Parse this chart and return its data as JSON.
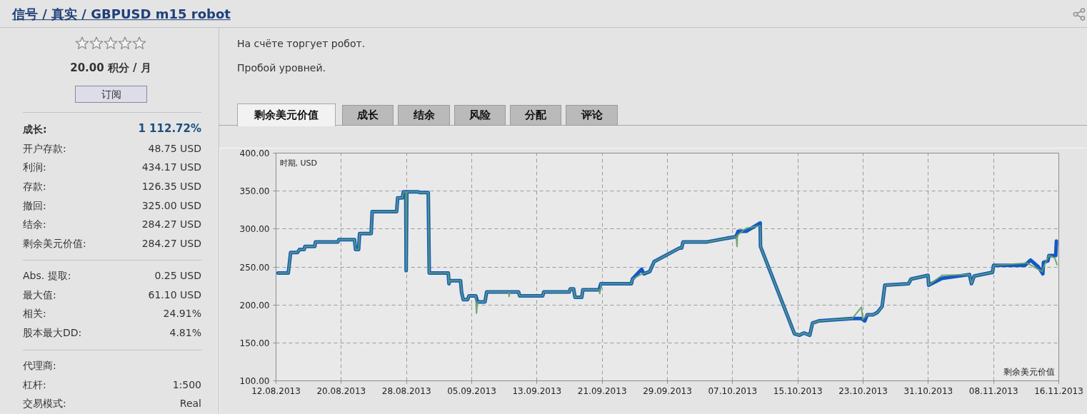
{
  "chart_data": {
    "type": "line",
    "title": "信号 / 真实 / GBPUSD m15 robot",
    "subtitle": "На счёте торгует робот.",
    "ylabel": "时期, USD",
    "xlim": [
      "2013-08-12",
      "2013-11-16"
    ],
    "xticks": [
      {
        "value": "2013-08-12",
        "label": "12.08.2013"
      },
      {
        "value": "2013-08-20",
        "label": "20.08.2013"
      },
      {
        "value": "2013-08-28",
        "label": "28.08.2013"
      },
      {
        "value": "2013-09-05",
        "label": "05.09.2013"
      },
      {
        "value": "2013-09-13",
        "label": "13.09.2013"
      },
      {
        "value": "2013-09-21",
        "label": "21.09.2013"
      },
      {
        "value": "2013-09-29",
        "label": "29.09.2013"
      },
      {
        "value": "2013-10-07",
        "label": "07.10.2013"
      },
      {
        "value": "2013-10-15",
        "label": "15.10.2013"
      },
      {
        "value": "2013-10-23",
        "label": "23.10.2013"
      },
      {
        "value": "2013-10-31",
        "label": "31.10.2013"
      },
      {
        "value": "2013-11-08",
        "label": "08.11.2013"
      },
      {
        "value": "2013-11-16",
        "label": "16.11.2013"
      }
    ],
    "ylim": [
      100,
      400
    ],
    "yticks": [
      {
        "value": 100,
        "label": "100.00"
      },
      {
        "value": 150,
        "label": "150.00"
      },
      {
        "value": 200,
        "label": "200.00"
      },
      {
        "value": 250,
        "label": "250.00"
      },
      {
        "value": 300,
        "label": "300.00"
      },
      {
        "value": 350,
        "label": "350.00"
      },
      {
        "value": 400,
        "label": "400.00"
      }
    ],
    "grid": true,
    "series": [
      {
        "color": "#1259c3",
        "x": [
          "2013-08-12T06:00",
          "2013-08-13T12:00",
          "2013-08-13T19:00",
          "2013-08-14T15:00",
          "2013-08-14T21:00",
          "2013-08-15T11:00",
          "2013-08-15T13:00",
          "2013-08-16T18:00",
          "2013-08-16T20:00",
          "2013-08-19T14:00",
          "2013-08-19T17:00",
          "2013-08-21T15:00",
          "2013-08-21T18:00",
          "2013-08-22T03:00",
          "2013-08-22T06:00",
          "2013-08-23T16:00",
          "2013-08-23T19:00",
          "2013-08-26T19:00",
          "2013-08-26T22:00",
          "2013-08-27T12:00",
          "2013-08-27T15:00",
          "2013-08-27T22:00",
          "2013-08-27T23:00",
          "2013-08-28T01:00",
          "2013-08-29T11:00",
          "2013-08-29T14:00",
          "2013-08-30T16:00",
          "2013-08-30T19:00",
          "2013-09-02T03:00",
          "2013-09-02T05:00",
          "2013-09-02T07:00",
          "2013-09-03T15:00",
          "2013-09-03T18:00",
          "2013-09-03T23:00",
          "2013-09-04T12:00",
          "2013-09-04T16:00",
          "2013-09-05T12:00",
          "2013-09-05T17:00",
          "2013-09-06T15:00",
          "2013-09-06T20:00",
          "2013-09-10T18:00",
          "2013-09-10T21:00",
          "2013-09-13T17:00",
          "2013-09-13T20:00",
          "2013-09-16T23:00",
          "2013-09-17T02:00",
          "2013-09-17T12:00",
          "2013-09-17T16:00",
          "2013-09-18T12:00",
          "2013-09-18T15:00",
          "2013-09-20T15:00",
          "2013-09-20T20:00",
          "2013-09-24T14:00",
          "2013-09-24T17:00",
          "2013-09-25T20:00",
          "2013-09-26T03:00",
          "2013-09-26T20:00",
          "2013-09-27T09:00",
          "2013-09-30T12:00",
          "2013-09-30T18:00",
          "2013-09-30T22:00",
          "2013-10-03T21:00",
          "2013-10-07T10:00",
          "2013-10-07T16:00",
          "2013-10-08T16:00",
          "2013-10-10T09:00",
          "2013-10-10T10:00",
          "2013-10-14T14:00",
          "2013-10-15T04:00",
          "2013-10-15T18:00",
          "2013-10-16T11:00",
          "2013-10-16T19:00",
          "2013-10-17T14:00",
          "2013-10-21T16:00",
          "2013-10-22T19:00",
          "2013-10-23T05:00",
          "2013-10-23T12:00",
          "2013-10-24T05:00",
          "2013-10-24T18:00",
          "2013-10-25T08:00",
          "2013-10-25T16:00",
          "2013-10-28T14:00",
          "2013-10-28T21:00",
          "2013-10-30T23:00",
          "2013-10-31T01:00",
          "2013-11-01T16:00",
          "2013-11-05T01:00",
          "2013-11-05T07:00",
          "2013-11-05T15:00",
          "2013-11-07T21:00",
          "2013-11-08T00:00",
          "2013-11-11T20:00",
          "2013-11-12T13:00",
          "2013-11-13T12:00",
          "2013-11-14T01:00",
          "2013-11-14T03:00",
          "2013-11-14T16:00",
          "2013-11-14T19:00",
          "2013-11-15T15:00",
          "2013-11-15T17:00"
        ],
        "values": [
          242,
          242,
          269,
          269,
          273,
          273,
          277,
          277,
          283,
          283,
          286,
          286,
          273,
          273,
          294,
          294,
          323,
          323,
          341,
          341,
          349,
          349,
          245,
          349,
          349,
          348,
          348,
          242,
          242,
          228,
          232,
          232,
          217,
          207,
          207,
          212,
          212,
          204,
          204,
          217,
          217,
          212,
          212,
          217,
          217,
          221,
          221,
          210,
          210,
          220,
          220,
          228,
          228,
          234,
          247,
          241,
          244,
          257,
          275,
          275,
          283,
          283,
          290,
          297,
          297,
          308,
          277,
          162,
          160,
          163,
          160,
          176,
          179,
          182,
          182,
          179,
          187,
          187,
          190,
          198,
          226,
          228,
          234,
          239,
          226,
          235,
          240,
          228,
          238,
          243,
          252,
          252,
          259,
          250,
          241,
          256,
          258,
          265,
          265,
          284
        ]
      },
      {
        "color": "#62a06c",
        "x": [
          "2013-08-12T06:00",
          "2013-08-13T12:00",
          "2013-08-13T19:00",
          "2013-08-14T15:00",
          "2013-08-14T21:00",
          "2013-08-15T11:00",
          "2013-08-15T13:00",
          "2013-08-16T18:00",
          "2013-08-16T20:00",
          "2013-08-19T14:00",
          "2013-08-19T17:00",
          "2013-08-21T15:00",
          "2013-08-21T18:00",
          "2013-08-22T03:00",
          "2013-08-22T06:00",
          "2013-08-23T16:00",
          "2013-08-23T19:00",
          "2013-08-26T19:00",
          "2013-08-26T22:00",
          "2013-08-27T12:00",
          "2013-08-27T15:00",
          "2013-08-27T22:00",
          "2013-08-27T23:00",
          "2013-08-28T01:00",
          "2013-08-29T11:00",
          "2013-08-29T14:00",
          "2013-08-30T16:00",
          "2013-08-30T19:00",
          "2013-09-02T03:00",
          "2013-09-02T05:00",
          "2013-09-02T07:00",
          "2013-09-03T15:00",
          "2013-09-03T18:00",
          "2013-09-03T23:00",
          "2013-09-04T12:00",
          "2013-09-04T16:00",
          "2013-09-05T12:00",
          "2013-09-05T14:00",
          "2013-09-05T17:00",
          "2013-09-06T15:00",
          "2013-09-06T20:00",
          "2013-09-09T13:00",
          "2013-09-09T14:00",
          "2013-09-09T16:00",
          "2013-09-10T18:00",
          "2013-09-10T21:00",
          "2013-09-13T17:00",
          "2013-09-13T20:00",
          "2013-09-16T23:00",
          "2013-09-17T02:00",
          "2013-09-17T12:00",
          "2013-09-17T16:00",
          "2013-09-18T12:00",
          "2013-09-18T15:00",
          "2013-09-20T15:00",
          "2013-09-20T17:00",
          "2013-09-20T20:00",
          "2013-09-24T14:00",
          "2013-09-24T17:00",
          "2013-09-25T17:00",
          "2013-09-26T20:00",
          "2013-09-27T09:00",
          "2013-09-30T12:00",
          "2013-09-30T18:00",
          "2013-09-30T22:00",
          "2013-10-03T21:00",
          "2013-10-07T10:00",
          "2013-10-07T13:00",
          "2013-10-07T14:00",
          "2013-10-08T16:00",
          "2013-10-10T05:00",
          "2013-10-10T09:00",
          "2013-10-10T10:00",
          "2013-10-14T14:00",
          "2013-10-15T04:00",
          "2013-10-15T18:00",
          "2013-10-16T11:00",
          "2013-10-16T19:00",
          "2013-10-17T14:00",
          "2013-10-21T16:00",
          "2013-10-22T19:00",
          "2013-10-22T23:00",
          "2013-10-23T12:00",
          "2013-10-24T05:00",
          "2013-10-24T18:00",
          "2013-10-25T08:00",
          "2013-10-25T16:00",
          "2013-10-28T14:00",
          "2013-10-28T21:00",
          "2013-10-30T23:00",
          "2013-10-31T01:00",
          "2013-11-01T16:00",
          "2013-11-05T01:00",
          "2013-11-05T07:00",
          "2013-11-05T15:00",
          "2013-11-07T21:00",
          "2013-11-08T00:00",
          "2013-11-11T20:00",
          "2013-11-11T23:00",
          "2013-11-13T23:00",
          "2013-11-14T06:00",
          "2013-11-14T19:00",
          "2013-11-15T12:00",
          "2013-11-15T19:00"
        ],
        "values": [
          242,
          242,
          269,
          269,
          273,
          273,
          277,
          277,
          283,
          283,
          286,
          286,
          273,
          273,
          294,
          294,
          323,
          323,
          341,
          341,
          349,
          349,
          245,
          349,
          349,
          348,
          348,
          242,
          242,
          228,
          232,
          232,
          217,
          207,
          207,
          212,
          212,
          189,
          204,
          204,
          217,
          217,
          211,
          217,
          217,
          212,
          212,
          217,
          217,
          221,
          221,
          210,
          210,
          220,
          220,
          215,
          228,
          228,
          234,
          240,
          244,
          257,
          275,
          275,
          283,
          283,
          290,
          277,
          292,
          301,
          304,
          304,
          277,
          162,
          160,
          163,
          160,
          176,
          179,
          182,
          197,
          181,
          187,
          187,
          190,
          198,
          226,
          228,
          234,
          239,
          226,
          239,
          240,
          228,
          238,
          243,
          252,
          255,
          256,
          244,
          253,
          265,
          262,
          253
        ]
      }
    ],
    "annotations": [
      "Пробой уровней.",
      "20.00 积分 / 月",
      "订阅",
      "剩余美元价值",
      "成长",
      "结余",
      "风险",
      "分配",
      "评论",
      "剩余美元价值",
      "成长:",
      "1 112.72%",
      "开户存款:",
      "48.75 USD",
      "利润:",
      "434.17 USD",
      "存款:",
      "126.35 USD",
      "撤回:",
      "325.00 USD",
      "结余:",
      "284.27 USD",
      "剩余美元价值:",
      "284.27 USD",
      "Abs. 提取:",
      "0.25 USD",
      "最大值:",
      "61.10 USD",
      "相关:",
      "24.91%",
      "股本最大DD:",
      "4.81%",
      "代理商:",
      "杠杆:",
      "1:500",
      "交易模式:",
      "Real"
    ]
  }
}
